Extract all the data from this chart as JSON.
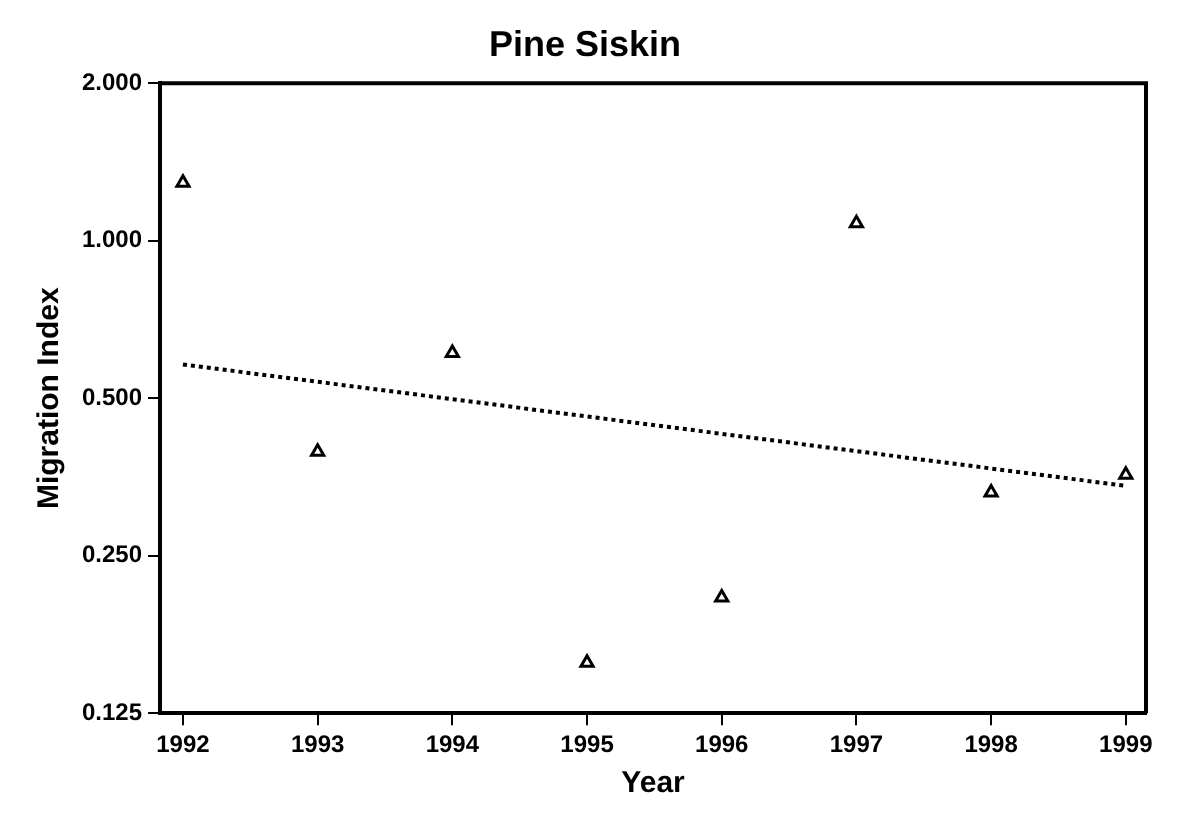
{
  "chart_data": {
    "type": "scatter",
    "title": "Pine Siskin",
    "xlabel": "Year",
    "ylabel": "Migration Index",
    "log": "y",
    "grid": false,
    "legend": false,
    "xlim": [
      1991.83,
      1999.15
    ],
    "xticks": [
      1992,
      1993,
      1994,
      1995,
      1996,
      1997,
      1998,
      1999
    ],
    "ylim": [
      0.125,
      2.0
    ],
    "yticks": [
      {
        "value": 0.125,
        "label": "0.125"
      },
      {
        "value": 0.25,
        "label": "0.250"
      },
      {
        "value": 0.5,
        "label": "0.500"
      },
      {
        "value": 1,
        "label": "1.000"
      },
      {
        "value": 2,
        "label": "2.000"
      }
    ],
    "series": [
      {
        "color": "#000000",
        "marker": "triangle",
        "x": [
          1992,
          1993,
          1994,
          1995,
          1996,
          1997,
          1998,
          1999
        ],
        "values": [
          1.29,
          0.395,
          0.61,
          0.156,
          0.208,
          1.08,
          0.33,
          0.357
        ]
      },
      {
        "type": "line",
        "color": "#000000",
        "marker": "none",
        "line_style": "dotted",
        "x": [
          1992,
          1999
        ],
        "values": [
          0.58,
          0.34
        ]
      }
    ]
  }
}
